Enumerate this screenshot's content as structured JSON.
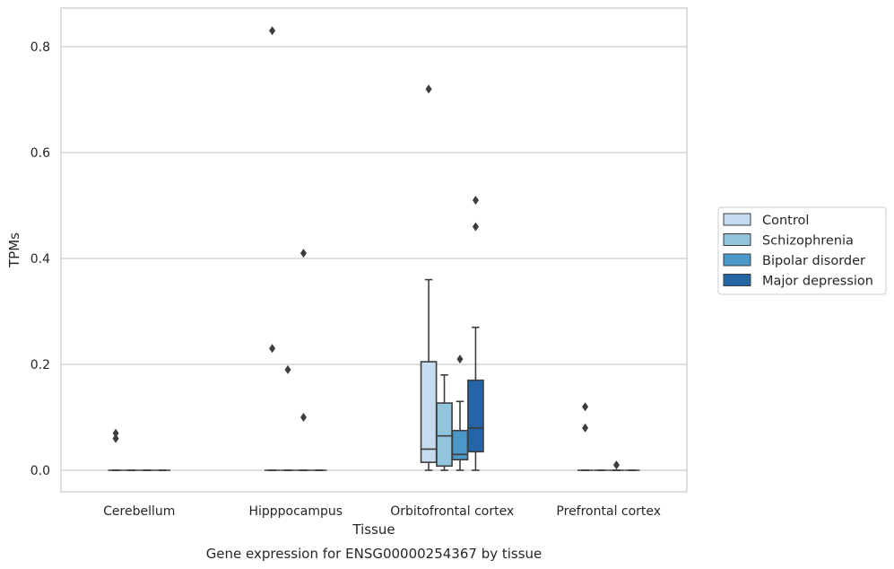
{
  "chart_data": {
    "type": "box",
    "title": "",
    "caption": "Gene expression for ENSG00000254367 by tissue",
    "xlabel": "Tissue",
    "ylabel": "TPMs",
    "ylim": [
      -0.04,
      0.87
    ],
    "yticks": [
      "0.0",
      "0.2",
      "0.4",
      "0.6",
      "0.8"
    ],
    "grid": "horizontal",
    "legend_position": "right",
    "categories": [
      "Cerebellum",
      "Hipppocampus",
      "Orbitofrontal cortex",
      "Prefrontal cortex"
    ],
    "series": [
      {
        "name": "Control",
        "color": "#c6dbef",
        "boxes": [
          {
            "category": "Cerebellum",
            "q1": 0,
            "median": 0,
            "q3": 0,
            "whislo": 0,
            "whishi": 0,
            "fliers": [
              0.06,
              0.07
            ]
          },
          {
            "category": "Hipppocampus",
            "q1": 0,
            "median": 0,
            "q3": 0,
            "whislo": 0,
            "whishi": 0,
            "fliers": [
              0.23,
              0.83
            ]
          },
          {
            "category": "Orbitofrontal cortex",
            "q1": 0.015,
            "median": 0.04,
            "q3": 0.205,
            "whislo": 0,
            "whishi": 0.36,
            "fliers": [
              0.72
            ]
          },
          {
            "category": "Prefrontal cortex",
            "q1": 0,
            "median": 0,
            "q3": 0,
            "whislo": 0,
            "whishi": 0,
            "fliers": [
              0.08,
              0.12
            ]
          }
        ]
      },
      {
        "name": "Schizophrenia",
        "color": "#93c4de",
        "boxes": [
          {
            "category": "Cerebellum",
            "q1": 0,
            "median": 0,
            "q3": 0,
            "whislo": 0,
            "whishi": 0,
            "fliers": []
          },
          {
            "category": "Hipppocampus",
            "q1": 0,
            "median": 0,
            "q3": 0,
            "whislo": 0,
            "whishi": 0,
            "fliers": [
              0.19
            ]
          },
          {
            "category": "Orbitofrontal cortex",
            "q1": 0.008,
            "median": 0.065,
            "q3": 0.127,
            "whislo": 0,
            "whishi": 0.18,
            "fliers": []
          },
          {
            "category": "Prefrontal cortex",
            "q1": 0,
            "median": 0,
            "q3": 0,
            "whislo": 0,
            "whishi": 0,
            "fliers": []
          }
        ]
      },
      {
        "name": "Bipolar disorder",
        "color": "#4a98c9",
        "boxes": [
          {
            "category": "Cerebellum",
            "q1": 0,
            "median": 0,
            "q3": 0,
            "whislo": 0,
            "whishi": 0,
            "fliers": []
          },
          {
            "category": "Hipppocampus",
            "q1": 0,
            "median": 0,
            "q3": 0,
            "whislo": 0,
            "whishi": 0,
            "fliers": [
              0.1,
              0.41
            ]
          },
          {
            "category": "Orbitofrontal cortex",
            "q1": 0.02,
            "median": 0.03,
            "q3": 0.075,
            "whislo": 0,
            "whishi": 0.13,
            "fliers": [
              0.21
            ]
          },
          {
            "category": "Prefrontal cortex",
            "q1": 0,
            "median": 0,
            "q3": 0,
            "whislo": 0,
            "whishi": 0,
            "fliers": [
              0.01
            ]
          }
        ]
      },
      {
        "name": "Major depression",
        "color": "#2365a6",
        "boxes": [
          {
            "category": "Cerebellum",
            "q1": 0,
            "median": 0,
            "q3": 0,
            "whislo": 0,
            "whishi": 0,
            "fliers": []
          },
          {
            "category": "Hipppocampus",
            "q1": 0,
            "median": 0,
            "q3": 0,
            "whislo": 0,
            "whishi": 0,
            "fliers": []
          },
          {
            "category": "Orbitofrontal cortex",
            "q1": 0.035,
            "median": 0.08,
            "q3": 0.17,
            "whislo": 0,
            "whishi": 0.27,
            "fliers": [
              0.46,
              0.51
            ]
          },
          {
            "category": "Prefrontal cortex",
            "q1": 0,
            "median": 0,
            "q3": 0,
            "whislo": 0,
            "whishi": 0,
            "fliers": []
          }
        ]
      }
    ]
  },
  "style": {
    "line_color": "#3d3d3d",
    "grid_color": "#cccccc",
    "frame_color": "#cccccc",
    "legend_border_color": "#cccccc"
  }
}
